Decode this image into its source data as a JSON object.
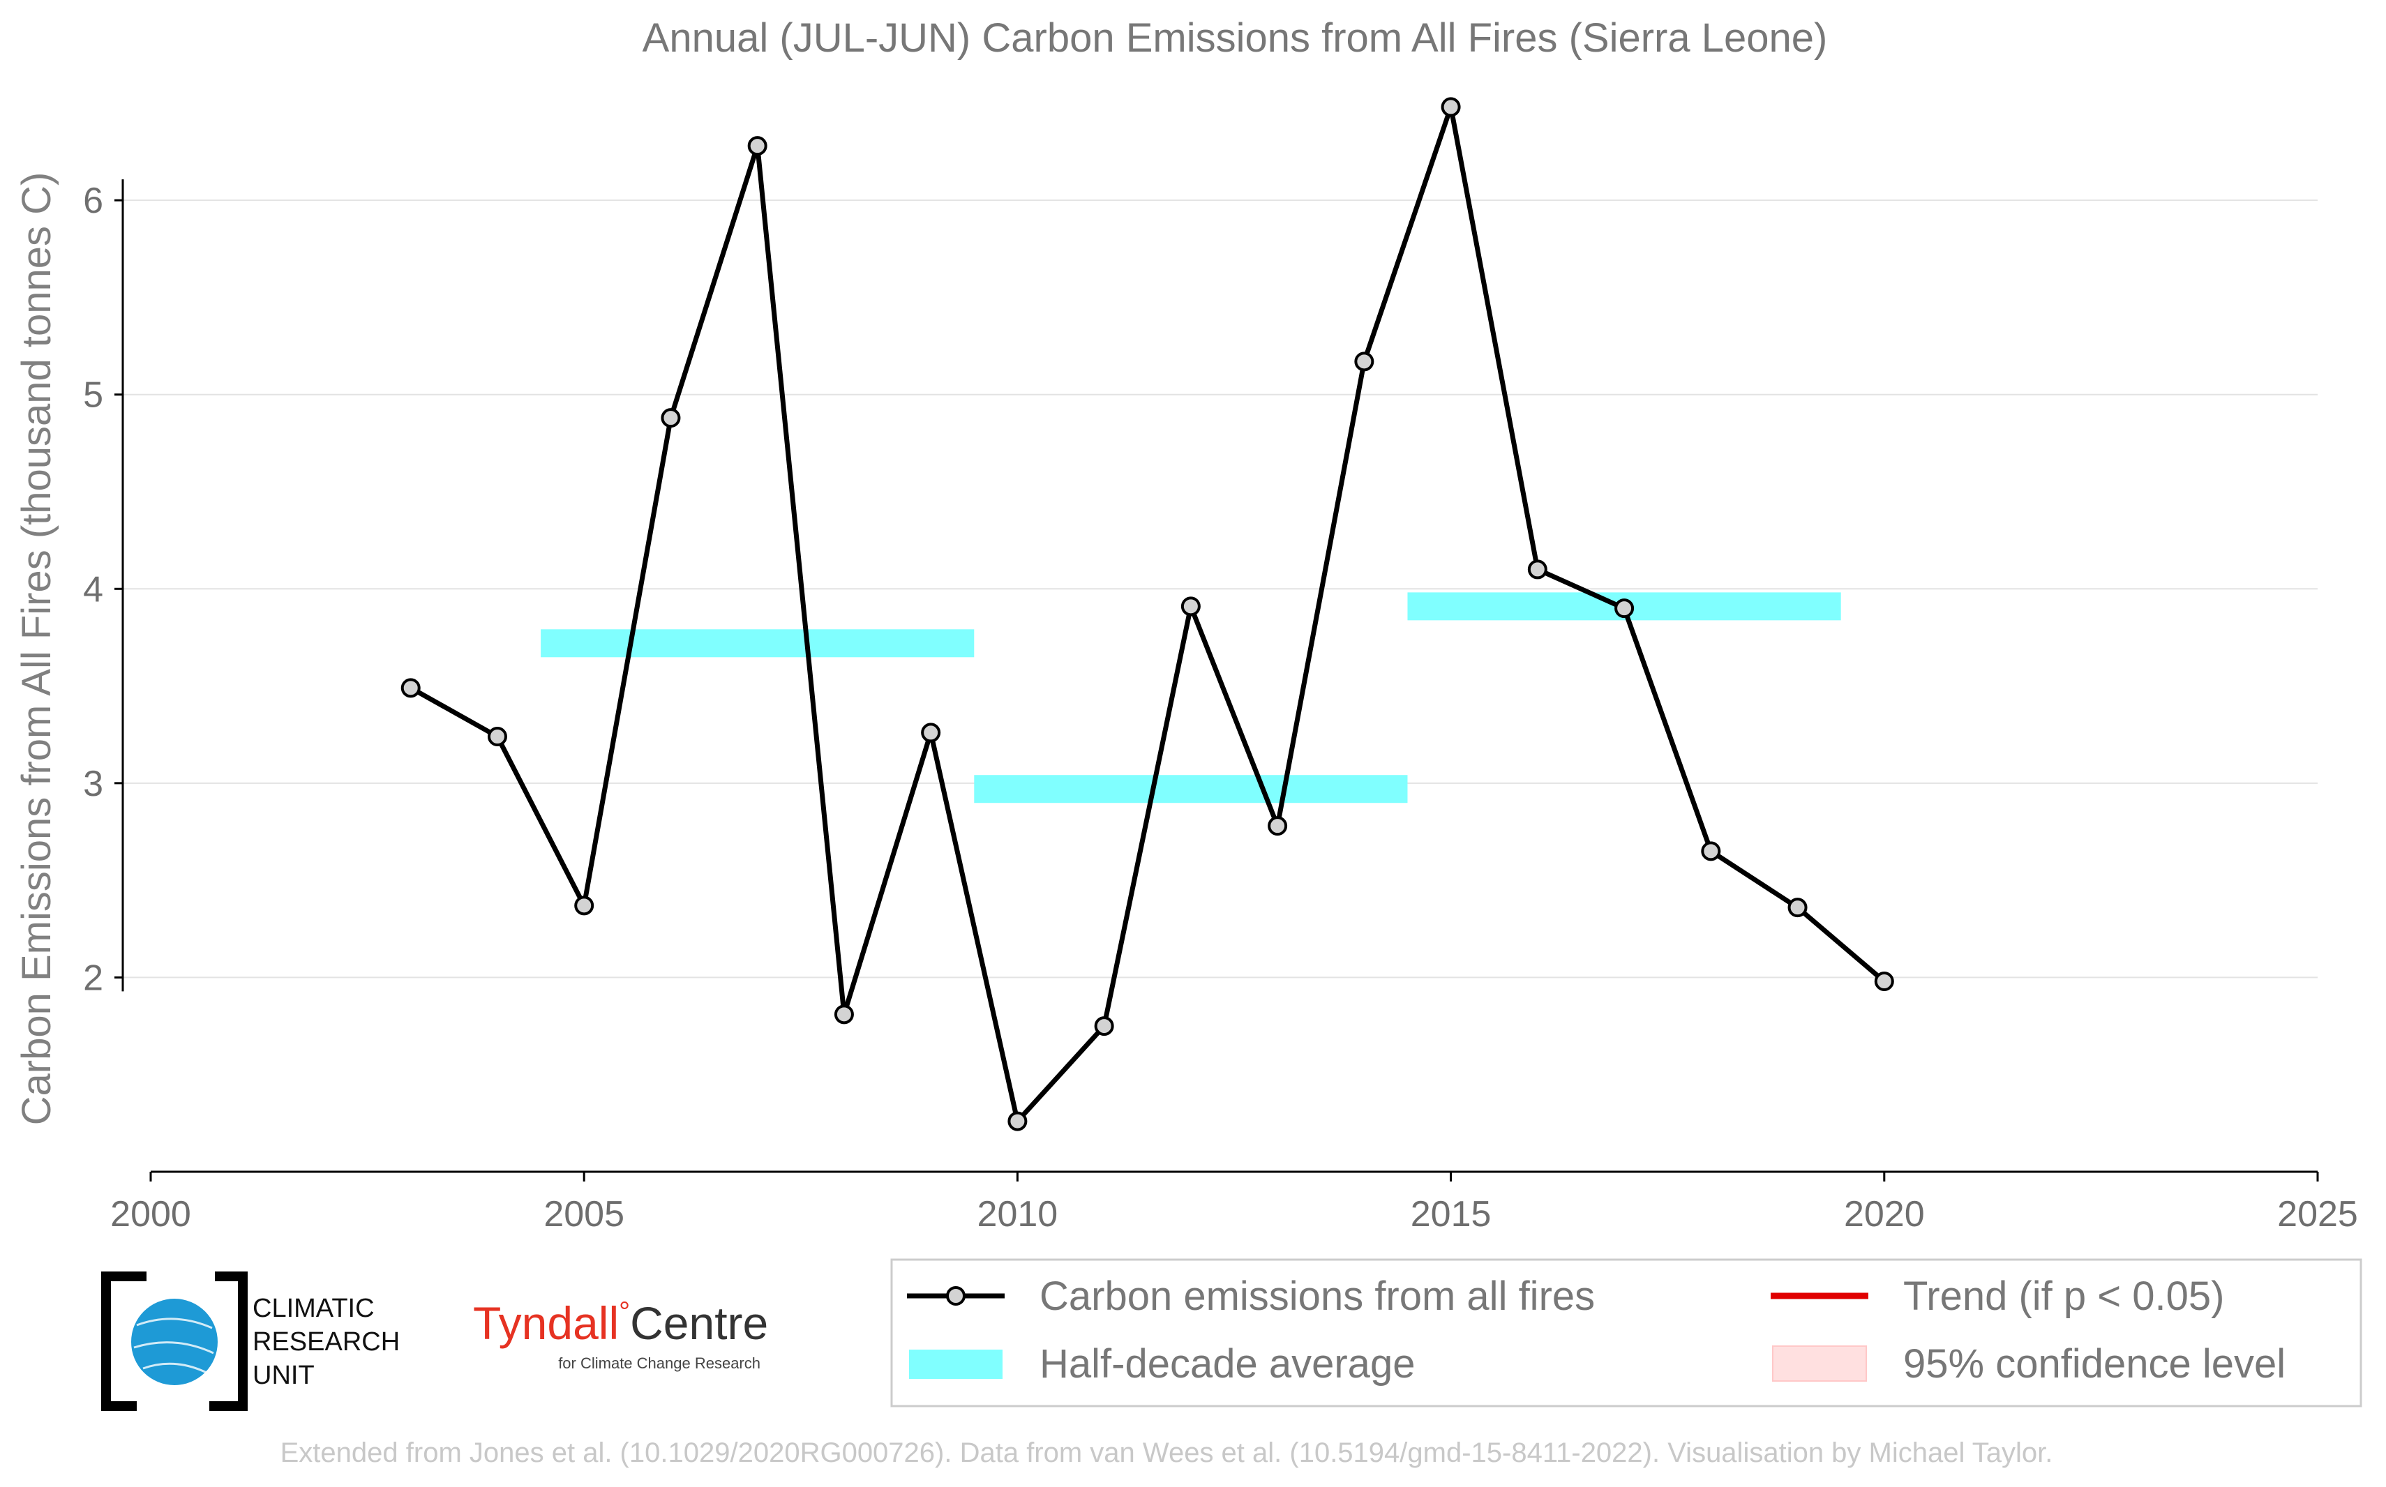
{
  "chart_data": {
    "type": "line",
    "title": "Annual (JUL-JUN) Carbon Emissions from All Fires (Sierra Leone)",
    "xlabel": "",
    "ylabel": "Carbon Emissions from All Fires (thousand tonnes C)",
    "xlim": [
      2000,
      2025
    ],
    "ylim": [
      1.0,
      6.6
    ],
    "x_ticks": [
      "2000",
      "2005",
      "2010",
      "2015",
      "2020",
      "2025"
    ],
    "y_ticks": [
      "2",
      "3",
      "4",
      "5",
      "6"
    ],
    "grid": "horizontal",
    "legend_position": "bottom-right",
    "series": [
      {
        "name": "Carbon emissions from all fires",
        "color": "#000000",
        "marker_color": "#d3d3d3",
        "x": [
          2003,
          2004,
          2005,
          2006,
          2007,
          2008,
          2009,
          2010,
          2011,
          2012,
          2013,
          2014,
          2015,
          2016,
          2017,
          2018,
          2019,
          2020
        ],
        "y": [
          3.49,
          3.24,
          2.37,
          4.88,
          6.28,
          1.81,
          3.26,
          1.26,
          1.75,
          3.91,
          2.78,
          5.17,
          6.48,
          4.1,
          3.9,
          2.65,
          2.36,
          1.98
        ]
      }
    ],
    "half_decade_averages": {
      "name": "Half-decade average",
      "color": "#80ffff",
      "segments": [
        {
          "x_start": 2004.5,
          "x_end": 2009.5,
          "y": 3.72
        },
        {
          "x_start": 2009.5,
          "x_end": 2014.5,
          "y": 2.97
        },
        {
          "x_start": 2014.5,
          "x_end": 2019.5,
          "y": 3.91
        }
      ]
    },
    "legend": [
      {
        "label": "Carbon emissions from all fires",
        "kind": "line-marker",
        "color": "#000000"
      },
      {
        "label": "Half-decade average",
        "kind": "band",
        "color": "#80ffff"
      },
      {
        "label": "Trend (if p < 0.05)",
        "kind": "line",
        "color": "#e00000"
      },
      {
        "label": "95% confidence level",
        "kind": "patch",
        "color": "#ffe0e0"
      }
    ]
  },
  "logos": {
    "cru": {
      "line1": "CLIMATIC",
      "line2": "RESEARCH",
      "line3": "UNIT",
      "icon": "globe-icon"
    },
    "tyndall": {
      "main": "Tyndall",
      "degree": "°",
      "centre": "Centre",
      "sub": "for Climate Change Research"
    }
  },
  "credit": "Extended from Jones et al. (10.1029/2020RG000726). Data from van Wees et al. (10.5194/gmd-15-8411-2022). Visualisation by Michael Taylor."
}
